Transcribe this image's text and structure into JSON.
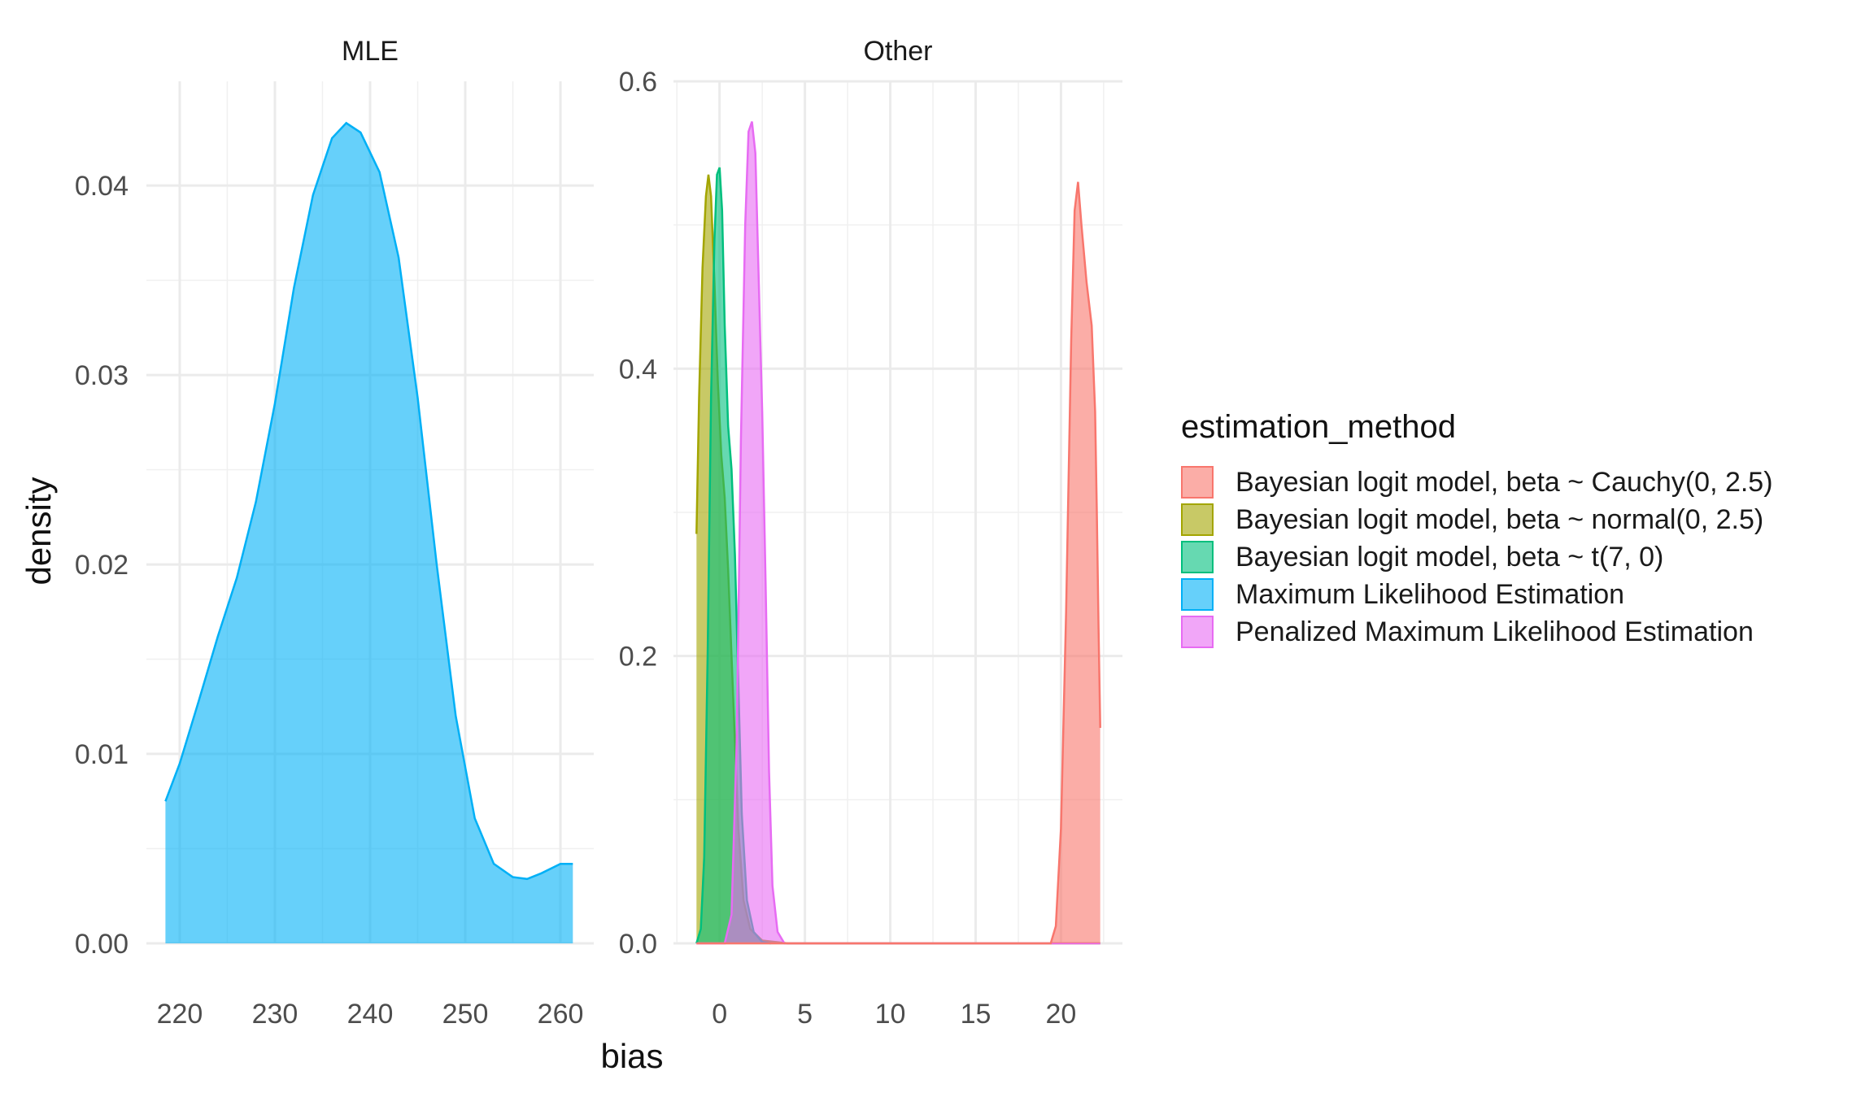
{
  "chart_data": {
    "type": "area",
    "subtype": "density",
    "xlabel": "bias",
    "ylabel": "density",
    "legend": {
      "title": "estimation_method",
      "position": "right",
      "entries": [
        {
          "name": "Bayesian logit model, beta ~ Cauchy(0, 2.5)",
          "color": "#F8766D"
        },
        {
          "name": "Bayesian logit model, beta ~ normal(0, 2.5)",
          "color": "#A3A500"
        },
        {
          "name": "Bayesian logit model, beta ~ t(7, 0)",
          "color": "#00BF7D"
        },
        {
          "name": "Maximum Likelihood Estimation",
          "color": "#00B0F6"
        },
        {
          "name": "Penalized Maximum Likelihood Estimation",
          "color": "#E76BF3"
        }
      ]
    },
    "grid": true,
    "shared_y_axis": true,
    "panels": [
      {
        "strip": "MLE",
        "xlim": [
          216.5,
          263.5
        ],
        "ylim": [
          0,
          0.0455
        ],
        "xticks": [
          "220",
          "230",
          "240",
          "250",
          "260"
        ],
        "xtick_values": [
          220,
          230,
          240,
          250,
          260
        ],
        "yticks": [
          "0.00",
          "0.01",
          "0.02",
          "0.03",
          "0.04"
        ],
        "ytick_values": [
          0,
          0.01,
          0.02,
          0.03,
          0.04
        ],
        "series": [
          {
            "name": "Maximum Likelihood Estimation",
            "color": "#00B0F6",
            "x": [
              218.5,
              220,
              222,
              224,
              226,
              228,
              230,
              232,
              234,
              236,
              237.5,
              239,
              241,
              243,
              245,
              247,
              249,
              251,
              253,
              255,
              256.5,
              258,
              260,
              261.3
            ],
            "y": [
              0.0075,
              0.0095,
              0.0128,
              0.0162,
              0.0193,
              0.0233,
              0.0285,
              0.0346,
              0.0395,
              0.0425,
              0.0433,
              0.0428,
              0.0407,
              0.0362,
              0.0288,
              0.02,
              0.012,
              0.0066,
              0.0042,
              0.0035,
              0.0034,
              0.0037,
              0.0042,
              0.0042
            ]
          }
        ]
      },
      {
        "strip": "Other",
        "xlim": [
          -2.7,
          23.6
        ],
        "ylim": [
          0,
          0.6
        ],
        "xticks": [
          "0",
          "5",
          "10",
          "15",
          "20"
        ],
        "xtick_values": [
          0,
          5,
          10,
          15,
          20
        ],
        "yticks": [
          "0.0",
          "0.2",
          "0.4",
          "0.6"
        ],
        "ytick_values": [
          0,
          0.2,
          0.4,
          0.6
        ],
        "series": [
          {
            "name": "Bayesian logit model, beta ~ normal(0, 2.5)",
            "color": "#A3A500",
            "x": [
              -1.35,
              -1.2,
              -1.0,
              -0.8,
              -0.65,
              -0.5,
              -0.3,
              -0.1,
              0.1,
              0.3,
              0.5,
              0.8,
              1.1,
              1.4,
              1.8,
              2.5,
              4.0,
              22.3
            ],
            "y": [
              0.285,
              0.38,
              0.47,
              0.52,
              0.535,
              0.52,
              0.46,
              0.39,
              0.34,
              0.31,
              0.26,
              0.17,
              0.08,
              0.03,
              0.01,
              0.002,
              0.0,
              0.0
            ]
          },
          {
            "name": "Bayesian logit model, beta ~ t(7, 0)",
            "color": "#00BF7D",
            "x": [
              -1.35,
              -1.1,
              -0.9,
              -0.7,
              -0.5,
              -0.3,
              -0.15,
              0.0,
              0.15,
              0.3,
              0.5,
              0.7,
              0.9,
              1.1,
              1.3,
              1.6,
              2.0,
              2.5,
              3.0
            ],
            "y": [
              0.0,
              0.01,
              0.06,
              0.2,
              0.38,
              0.49,
              0.535,
              0.54,
              0.51,
              0.43,
              0.36,
              0.33,
              0.27,
              0.18,
              0.09,
              0.03,
              0.008,
              0.001,
              0.0
            ]
          },
          {
            "name": "Penalized Maximum Likelihood Estimation",
            "color": "#E76BF3",
            "x": [
              -1.35,
              0.3,
              0.7,
              1.0,
              1.25,
              1.5,
              1.7,
              1.9,
              2.1,
              2.3,
              2.5,
              2.7,
              2.9,
              3.1,
              3.4,
              3.8,
              22.3
            ],
            "y": [
              0.0,
              0.0,
              0.02,
              0.14,
              0.35,
              0.5,
              0.565,
              0.572,
              0.55,
              0.46,
              0.37,
              0.25,
              0.12,
              0.04,
              0.008,
              0.0,
              0.0
            ]
          },
          {
            "name": "Bayesian logit model, beta ~ Cauchy(0, 2.5)",
            "color": "#F8766D",
            "x": [
              -1.35,
              19.4,
              19.7,
              20.0,
              20.3,
              20.6,
              20.8,
              21.0,
              21.2,
              21.5,
              21.8,
              22.0,
              22.1,
              22.2,
              22.3
            ],
            "y": [
              0.0,
              0.0,
              0.012,
              0.08,
              0.23,
              0.42,
              0.51,
              0.53,
              0.5,
              0.46,
              0.43,
              0.37,
              0.3,
              0.22,
              0.15
            ]
          }
        ]
      }
    ]
  }
}
